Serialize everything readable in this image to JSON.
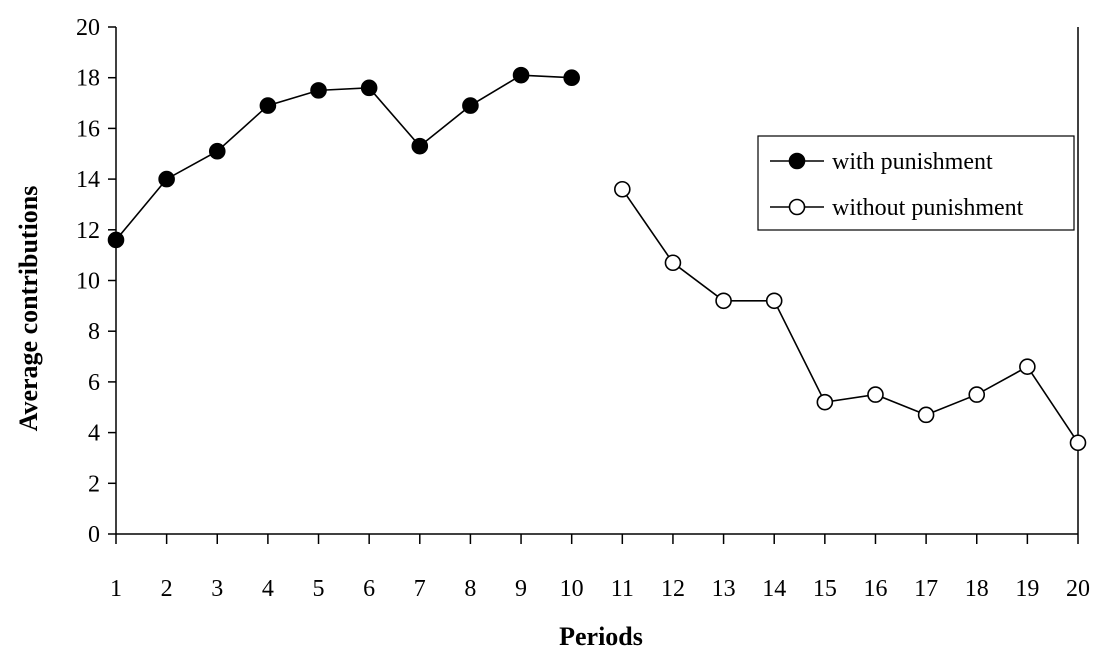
{
  "chart_data": {
    "type": "line",
    "title": "",
    "xlabel": "Periods",
    "ylabel": "Average contributions",
    "ylim": [
      0,
      20
    ],
    "yticks": [
      0,
      2,
      4,
      6,
      8,
      10,
      12,
      14,
      16,
      18,
      20
    ],
    "x_categories": [
      "1",
      "2",
      "3",
      "4",
      "5",
      "6",
      "7",
      "8",
      "9",
      "10",
      "11",
      "12",
      "13",
      "14",
      "15",
      "16",
      "17",
      "18",
      "19",
      "20"
    ],
    "grid": false,
    "legend_position": "right",
    "series": [
      {
        "name": "with punishment",
        "marker": "filled-circle",
        "color": "#000000",
        "x": [
          1,
          2,
          3,
          4,
          5,
          6,
          7,
          8,
          9,
          10
        ],
        "y": [
          11.6,
          14.0,
          15.1,
          16.9,
          17.5,
          17.6,
          15.3,
          16.9,
          18.1,
          18.0
        ]
      },
      {
        "name": "without punishment",
        "marker": "open-circle",
        "color": "#000000",
        "x": [
          11,
          12,
          13,
          14,
          15,
          16,
          17,
          18,
          19,
          20
        ],
        "y": [
          13.6,
          10.7,
          9.2,
          9.2,
          5.2,
          5.5,
          4.7,
          5.5,
          6.6,
          3.6
        ]
      }
    ]
  }
}
